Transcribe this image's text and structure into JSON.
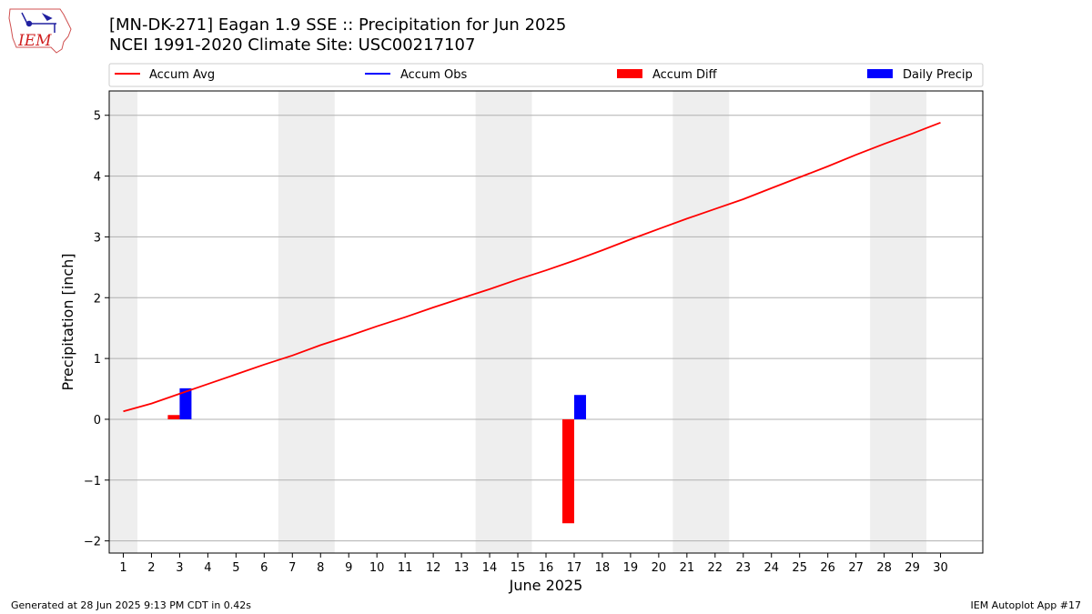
{
  "header": {
    "title_line1": "[MN-DK-271] Eagan 1.9 SSE :: Precipitation for Jun 2025",
    "title_line2": "NCEI 1991-2020 Climate Site: USC00217107",
    "logo_text": "IEM"
  },
  "footer": {
    "generated": "Generated at 28 Jun 2025 9:13 PM CDT in 0.42s",
    "app": "IEM Autoplot App #17"
  },
  "colors": {
    "accum_avg": "#ff0000",
    "accum_obs": "#0000ff",
    "accum_diff": "#ff0000",
    "daily_precip": "#0000ff",
    "weekend_shade": "#eeeeee",
    "grid": "#b0b0b0"
  },
  "chart_data": {
    "type": "bar",
    "xlabel": "June 2025",
    "ylabel": "Precipitation [inch]",
    "xlim": [
      0.5,
      31.5
    ],
    "ylim": [
      -2.2,
      5.4
    ],
    "yticks": [
      -2,
      -1,
      0,
      1,
      2,
      3,
      4,
      5
    ],
    "ytick_labels": [
      "−2",
      "−1",
      "0",
      "1",
      "2",
      "3",
      "4",
      "5"
    ],
    "x": [
      1,
      2,
      3,
      4,
      5,
      6,
      7,
      8,
      9,
      10,
      11,
      12,
      13,
      14,
      15,
      16,
      17,
      18,
      19,
      20,
      21,
      22,
      23,
      24,
      25,
      26,
      27,
      28,
      29,
      30
    ],
    "grid": "horizontal",
    "legend_position": "top",
    "legend": [
      "Accum Avg",
      "Accum Obs",
      "Accum Diff",
      "Daily Precip"
    ],
    "weekend_days": [
      1,
      7,
      8,
      14,
      15,
      21,
      22,
      28,
      29
    ],
    "series": [
      {
        "name": "Accum Avg",
        "type": "line",
        "x": [
          1,
          2,
          3,
          4,
          5,
          6,
          7,
          8,
          9,
          10,
          11,
          12,
          13,
          14,
          15,
          16,
          17,
          18,
          19,
          20,
          21,
          22,
          23,
          24,
          25,
          26,
          27,
          28,
          29,
          30
        ],
        "values": [
          0.13,
          0.26,
          0.42,
          0.58,
          0.74,
          0.9,
          1.05,
          1.22,
          1.37,
          1.53,
          1.68,
          1.84,
          1.99,
          2.14,
          2.3,
          2.45,
          2.61,
          2.78,
          2.96,
          3.13,
          3.3,
          3.46,
          3.62,
          3.8,
          3.98,
          4.16,
          4.35,
          4.53,
          4.7,
          4.88
        ]
      },
      {
        "name": "Accum Diff",
        "type": "bar",
        "x": [
          3,
          17
        ],
        "values": [
          0.07,
          -1.71
        ]
      },
      {
        "name": "Daily Precip",
        "type": "bar",
        "x": [
          3,
          17
        ],
        "values": [
          0.51,
          0.4
        ]
      }
    ]
  }
}
